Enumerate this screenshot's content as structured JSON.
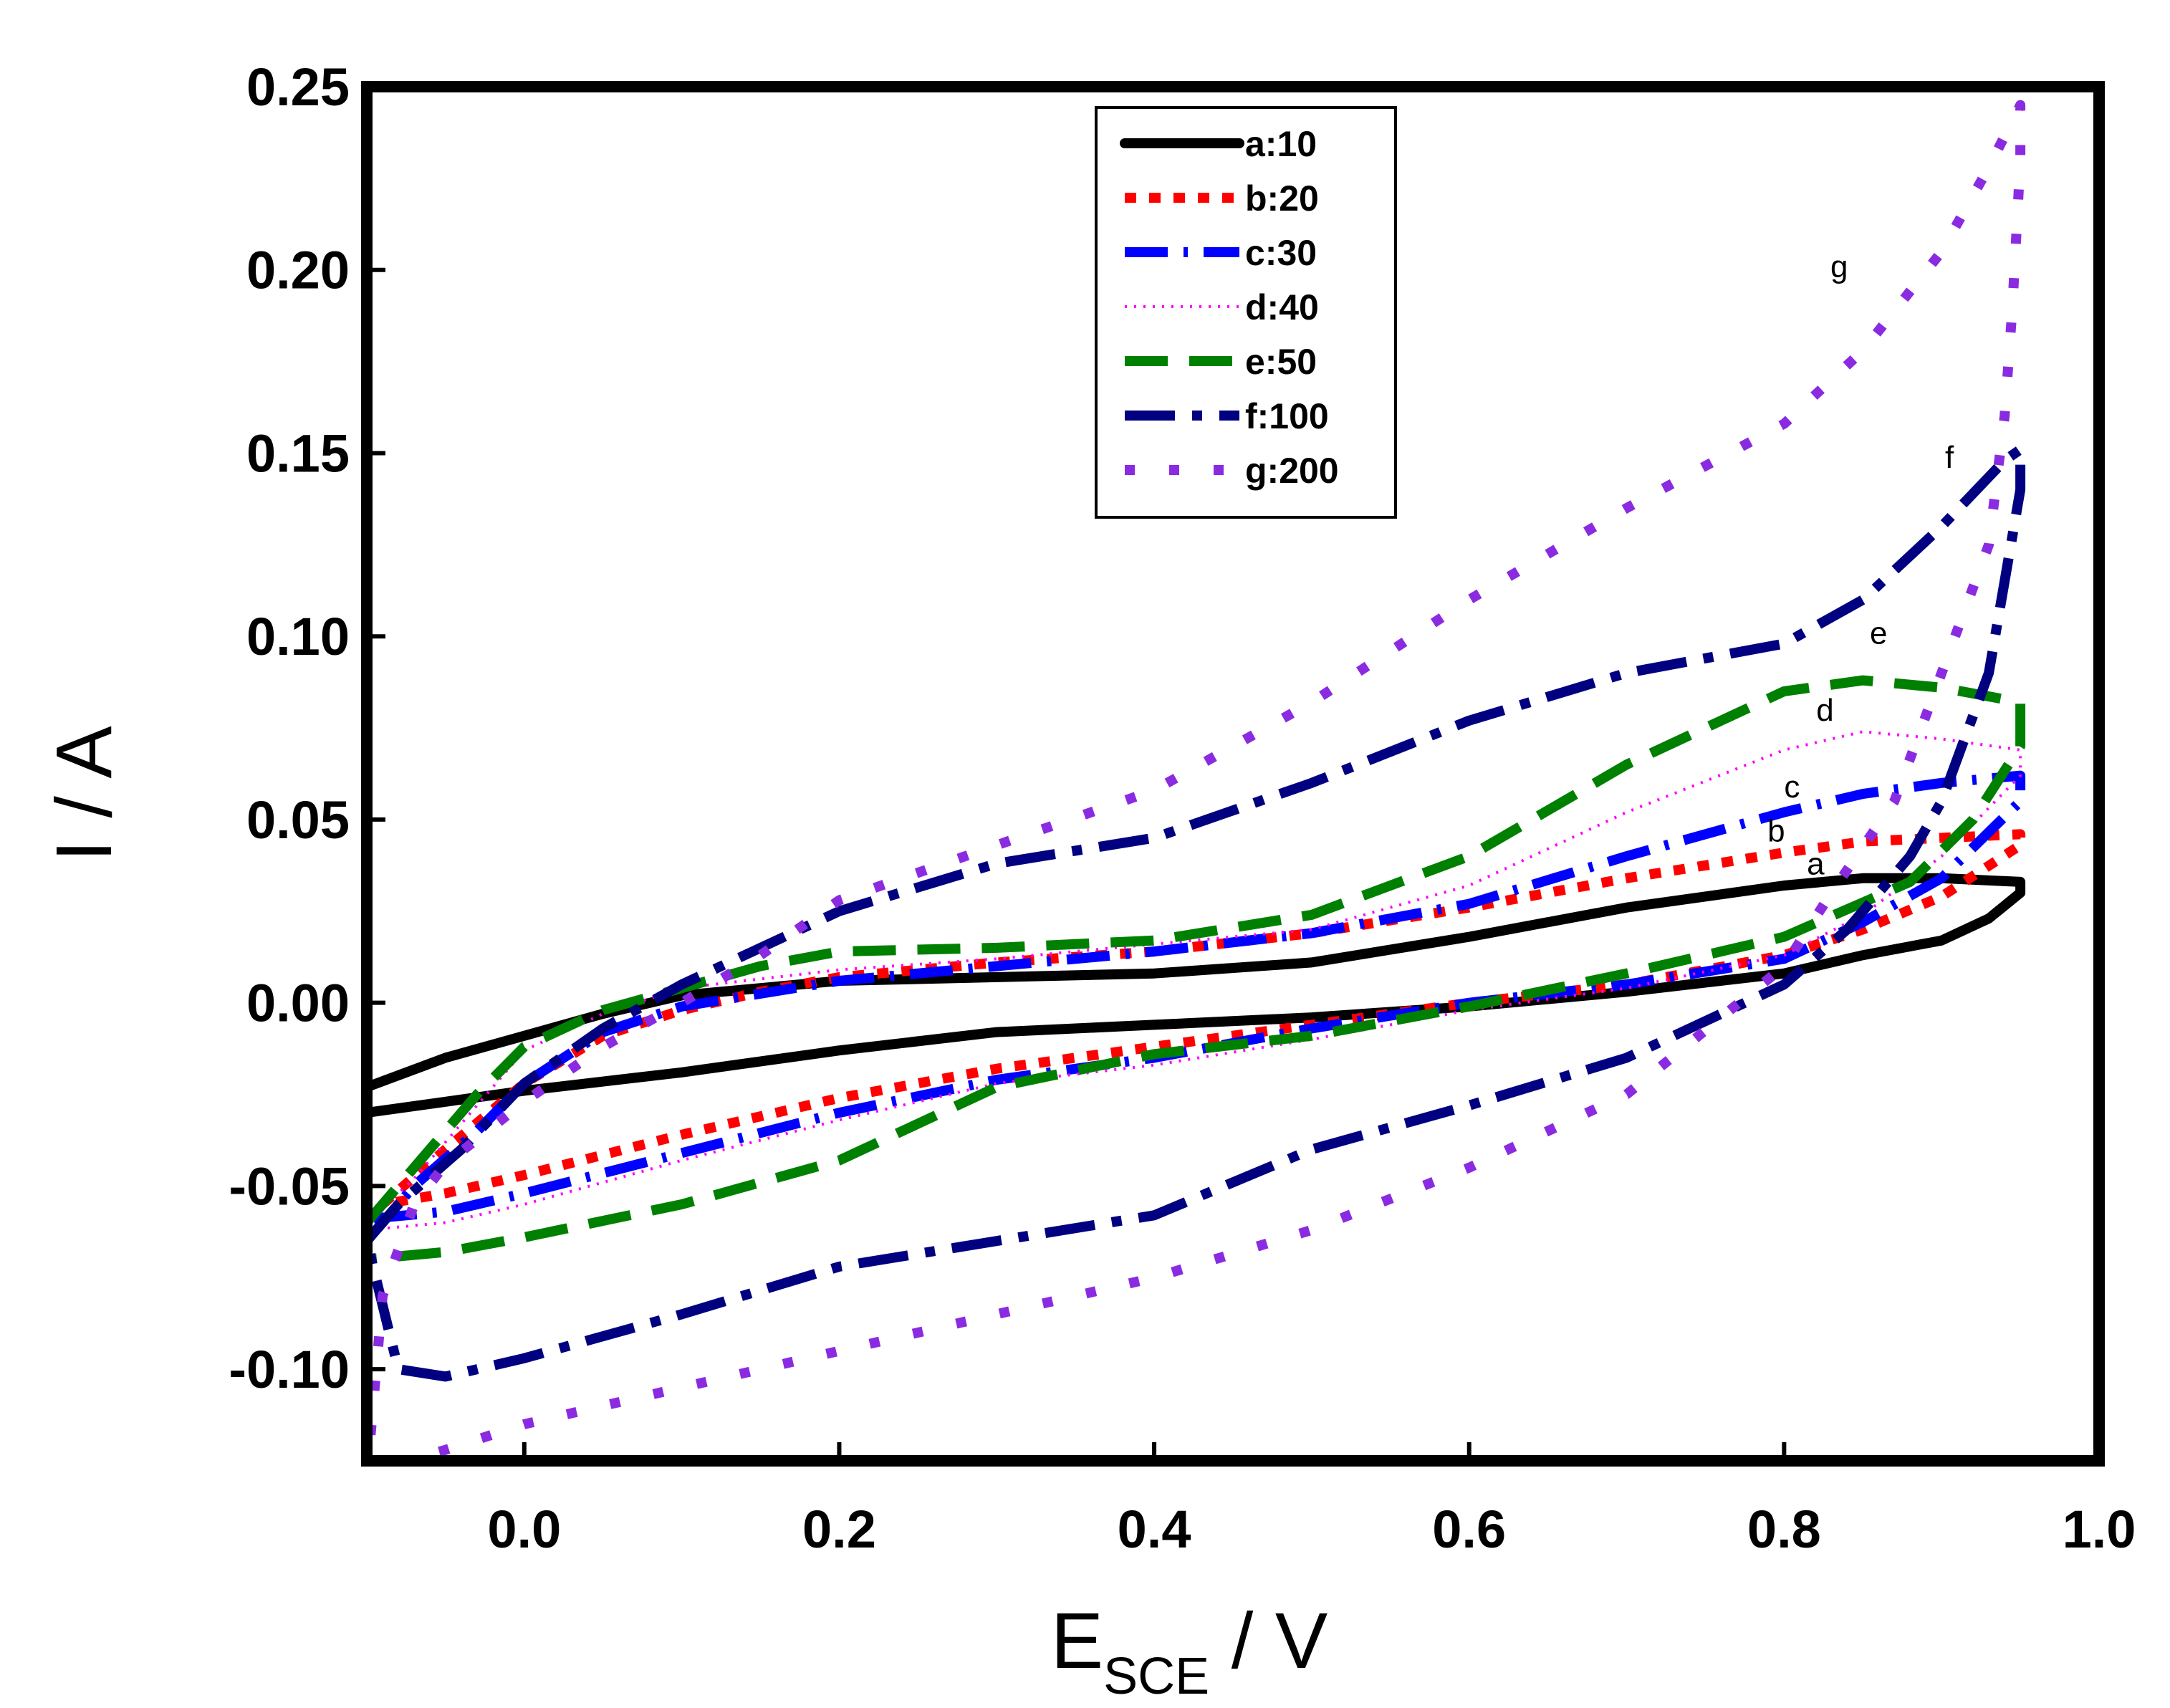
{
  "chart_data": {
    "type": "line",
    "title": "",
    "xlabel": {
      "main": "E",
      "subscript": "SCE",
      "suffix": " / V"
    },
    "ylabel": "I / A",
    "xlim": [
      -0.1,
      1.0
    ],
    "ylim": [
      -0.125,
      0.25
    ],
    "xticks": [
      0.0,
      0.2,
      0.4,
      0.6,
      0.8,
      1.0
    ],
    "xtick_labels": [
      "0.0",
      "0.2",
      "0.4",
      "0.6",
      "0.8",
      "1.0"
    ],
    "yticks": [
      -0.1,
      -0.05,
      0.0,
      0.05,
      0.1,
      0.15,
      0.2,
      0.25
    ],
    "ytick_labels": [
      "-0.10",
      "-0.05",
      "0.00",
      "0.05",
      "0.10",
      "0.15",
      "0.20",
      "0.25"
    ],
    "grid": false,
    "legend_position": "top-center",
    "series": [
      {
        "name": "a:10",
        "label": "a",
        "color": "#000000",
        "style": "solid",
        "label_at": [
          0.82,
          0.035
        ],
        "points": [
          [
            -0.1,
            -0.023
          ],
          [
            -0.05,
            -0.015
          ],
          [
            0.0,
            -0.009
          ],
          [
            0.05,
            -0.003
          ],
          [
            0.1,
            0.002
          ],
          [
            0.15,
            0.004
          ],
          [
            0.2,
            0.006
          ],
          [
            0.3,
            0.007
          ],
          [
            0.4,
            0.008
          ],
          [
            0.5,
            0.011
          ],
          [
            0.6,
            0.018
          ],
          [
            0.7,
            0.026
          ],
          [
            0.8,
            0.032
          ],
          [
            0.85,
            0.034
          ],
          [
            0.9,
            0.034
          ],
          [
            0.95,
            0.033
          ],
          [
            0.95,
            0.03
          ],
          [
            0.93,
            0.023
          ],
          [
            0.9,
            0.017
          ],
          [
            0.85,
            0.013
          ],
          [
            0.8,
            0.008
          ],
          [
            0.7,
            0.003
          ],
          [
            0.6,
            -0.001
          ],
          [
            0.5,
            -0.004
          ],
          [
            0.4,
            -0.006
          ],
          [
            0.3,
            -0.008
          ],
          [
            0.2,
            -0.013
          ],
          [
            0.1,
            -0.019
          ],
          [
            0.0,
            -0.024
          ],
          [
            -0.05,
            -0.027
          ],
          [
            -0.1,
            -0.03
          ]
        ]
      },
      {
        "name": "b:20",
        "label": "b",
        "color": "#ff0000",
        "style": "dotted-heavy",
        "label_at": [
          0.795,
          0.044
        ],
        "points": [
          [
            -0.09,
            -0.055
          ],
          [
            -0.05,
            -0.04
          ],
          [
            0.0,
            -0.022
          ],
          [
            0.05,
            -0.009
          ],
          [
            0.1,
            -0.002
          ],
          [
            0.15,
            0.003
          ],
          [
            0.2,
            0.007
          ],
          [
            0.3,
            0.011
          ],
          [
            0.4,
            0.014
          ],
          [
            0.5,
            0.019
          ],
          [
            0.6,
            0.026
          ],
          [
            0.7,
            0.034
          ],
          [
            0.8,
            0.041
          ],
          [
            0.85,
            0.044
          ],
          [
            0.9,
            0.045
          ],
          [
            0.95,
            0.046
          ],
          [
            0.95,
            0.043
          ],
          [
            0.9,
            0.029
          ],
          [
            0.85,
            0.02
          ],
          [
            0.8,
            0.013
          ],
          [
            0.7,
            0.005
          ],
          [
            0.6,
            0.0
          ],
          [
            0.5,
            -0.006
          ],
          [
            0.4,
            -0.012
          ],
          [
            0.3,
            -0.018
          ],
          [
            0.2,
            -0.026
          ],
          [
            0.1,
            -0.036
          ],
          [
            0.0,
            -0.047
          ],
          [
            -0.05,
            -0.052
          ],
          [
            -0.09,
            -0.055
          ]
        ]
      },
      {
        "name": "c:30",
        "label": "c",
        "color": "#0000ff",
        "style": "dash-dot-long",
        "label_at": [
          0.805,
          0.056
        ],
        "points": [
          [
            -0.1,
            -0.065
          ],
          [
            -0.07,
            -0.05
          ],
          [
            -0.03,
            -0.035
          ],
          [
            0.0,
            -0.022
          ],
          [
            0.05,
            -0.008
          ],
          [
            0.1,
            -0.001
          ],
          [
            0.2,
            0.006
          ],
          [
            0.3,
            0.01
          ],
          [
            0.4,
            0.014
          ],
          [
            0.5,
            0.019
          ],
          [
            0.6,
            0.027
          ],
          [
            0.7,
            0.04
          ],
          [
            0.8,
            0.052
          ],
          [
            0.85,
            0.057
          ],
          [
            0.9,
            0.06
          ],
          [
            0.95,
            0.062
          ],
          [
            0.95,
            0.055
          ],
          [
            0.9,
            0.034
          ],
          [
            0.85,
            0.022
          ],
          [
            0.8,
            0.012
          ],
          [
            0.7,
            0.005
          ],
          [
            0.6,
            0.0
          ],
          [
            0.5,
            -0.007
          ],
          [
            0.4,
            -0.015
          ],
          [
            0.3,
            -0.021
          ],
          [
            0.2,
            -0.03
          ],
          [
            0.1,
            -0.041
          ],
          [
            0.0,
            -0.052
          ],
          [
            -0.05,
            -0.057
          ],
          [
            -0.1,
            -0.059
          ]
        ]
      },
      {
        "name": "d:40",
        "label": "d",
        "color": "#ff00ff",
        "style": "fine-dotted",
        "label_at": [
          0.826,
          0.077
        ],
        "points": [
          [
            -0.1,
            -0.06
          ],
          [
            -0.07,
            -0.048
          ],
          [
            -0.03,
            -0.028
          ],
          [
            0.0,
            -0.013
          ],
          [
            0.05,
            -0.003
          ],
          [
            0.1,
            0.004
          ],
          [
            0.2,
            0.009
          ],
          [
            0.3,
            0.012
          ],
          [
            0.4,
            0.016
          ],
          [
            0.5,
            0.02
          ],
          [
            0.6,
            0.032
          ],
          [
            0.7,
            0.052
          ],
          [
            0.8,
            0.069
          ],
          [
            0.85,
            0.074
          ],
          [
            0.9,
            0.072
          ],
          [
            0.95,
            0.069
          ],
          [
            0.95,
            0.062
          ],
          [
            0.9,
            0.04
          ],
          [
            0.85,
            0.024
          ],
          [
            0.8,
            0.013
          ],
          [
            0.7,
            0.004
          ],
          [
            0.6,
            -0.002
          ],
          [
            0.5,
            -0.01
          ],
          [
            0.4,
            -0.017
          ],
          [
            0.3,
            -0.022
          ],
          [
            0.2,
            -0.032
          ],
          [
            0.1,
            -0.043
          ],
          [
            0.0,
            -0.055
          ],
          [
            -0.05,
            -0.06
          ],
          [
            -0.1,
            -0.062
          ]
        ]
      },
      {
        "name": "e:50",
        "label": "e",
        "color": "#008000",
        "style": "dashed-long",
        "label_at": [
          0.86,
          0.098
        ],
        "points": [
          [
            -0.1,
            -0.06
          ],
          [
            -0.07,
            -0.045
          ],
          [
            -0.03,
            -0.025
          ],
          [
            0.0,
            -0.012
          ],
          [
            0.05,
            -0.002
          ],
          [
            0.1,
            0.004
          ],
          [
            0.15,
            0.01
          ],
          [
            0.2,
            0.014
          ],
          [
            0.3,
            0.015
          ],
          [
            0.4,
            0.017
          ],
          [
            0.5,
            0.024
          ],
          [
            0.6,
            0.04
          ],
          [
            0.7,
            0.065
          ],
          [
            0.8,
            0.085
          ],
          [
            0.85,
            0.088
          ],
          [
            0.9,
            0.086
          ],
          [
            0.95,
            0.082
          ],
          [
            0.95,
            0.07
          ],
          [
            0.92,
            0.05
          ],
          [
            0.88,
            0.033
          ],
          [
            0.8,
            0.018
          ],
          [
            0.7,
            0.008
          ],
          [
            0.6,
            -0.001
          ],
          [
            0.5,
            -0.009
          ],
          [
            0.4,
            -0.014
          ],
          [
            0.3,
            -0.023
          ],
          [
            0.2,
            -0.043
          ],
          [
            0.1,
            -0.055
          ],
          [
            0.0,
            -0.064
          ],
          [
            -0.05,
            -0.068
          ],
          [
            -0.1,
            -0.07
          ]
        ]
      },
      {
        "name": "f:100",
        "label": "f",
        "color": "#000080",
        "style": "dash-dot",
        "label_at": [
          0.905,
          0.146
        ],
        "points": [
          [
            -0.1,
            -0.065
          ],
          [
            -0.08,
            -0.055
          ],
          [
            -0.04,
            -0.04
          ],
          [
            0.0,
            -0.022
          ],
          [
            0.05,
            -0.007
          ],
          [
            0.1,
            0.005
          ],
          [
            0.2,
            0.025
          ],
          [
            0.3,
            0.038
          ],
          [
            0.4,
            0.045
          ],
          [
            0.5,
            0.06
          ],
          [
            0.6,
            0.077
          ],
          [
            0.7,
            0.09
          ],
          [
            0.8,
            0.098
          ],
          [
            0.85,
            0.11
          ],
          [
            0.9,
            0.13
          ],
          [
            0.94,
            0.148
          ],
          [
            0.95,
            0.151
          ],
          [
            0.95,
            0.14
          ],
          [
            0.94,
            0.115
          ],
          [
            0.93,
            0.09
          ],
          [
            0.9,
            0.055
          ],
          [
            0.88,
            0.04
          ],
          [
            0.84,
            0.02
          ],
          [
            0.8,
            0.005
          ],
          [
            0.7,
            -0.015
          ],
          [
            0.6,
            -0.028
          ],
          [
            0.5,
            -0.04
          ],
          [
            0.4,
            -0.058
          ],
          [
            0.3,
            -0.065
          ],
          [
            0.2,
            -0.072
          ],
          [
            0.1,
            -0.085
          ],
          [
            0.0,
            -0.097
          ],
          [
            -0.05,
            -0.102
          ],
          [
            -0.08,
            -0.1
          ]
        ]
      },
      {
        "name": "g:200",
        "label": "g",
        "color": "#8a2be2",
        "style": "dotted-sparse",
        "label_at": [
          0.835,
          0.198
        ],
        "points": [
          [
            -0.1,
            -0.13
          ],
          [
            -0.09,
            -0.08
          ],
          [
            -0.07,
            -0.055
          ],
          [
            -0.05,
            -0.044
          ],
          [
            0.0,
            -0.027
          ],
          [
            0.05,
            -0.012
          ],
          [
            0.1,
            0.0
          ],
          [
            0.15,
            0.013
          ],
          [
            0.2,
            0.028
          ],
          [
            0.3,
            0.043
          ],
          [
            0.4,
            0.058
          ],
          [
            0.5,
            0.082
          ],
          [
            0.6,
            0.11
          ],
          [
            0.7,
            0.135
          ],
          [
            0.8,
            0.158
          ],
          [
            0.85,
            0.178
          ],
          [
            0.9,
            0.205
          ],
          [
            0.93,
            0.228
          ],
          [
            0.95,
            0.245
          ],
          [
            0.95,
            0.23
          ],
          [
            0.945,
            0.19
          ],
          [
            0.94,
            0.16
          ],
          [
            0.93,
            0.125
          ],
          [
            0.9,
            0.09
          ],
          [
            0.87,
            0.055
          ],
          [
            0.83,
            0.03
          ],
          [
            0.8,
            0.01
          ],
          [
            0.7,
            -0.025
          ],
          [
            0.6,
            -0.045
          ],
          [
            0.5,
            -0.062
          ],
          [
            0.4,
            -0.075
          ],
          [
            0.3,
            -0.085
          ],
          [
            0.2,
            -0.095
          ],
          [
            0.1,
            -0.105
          ],
          [
            0.0,
            -0.115
          ],
          [
            -0.05,
            -0.122
          ],
          [
            -0.1,
            -0.128
          ]
        ]
      }
    ]
  }
}
